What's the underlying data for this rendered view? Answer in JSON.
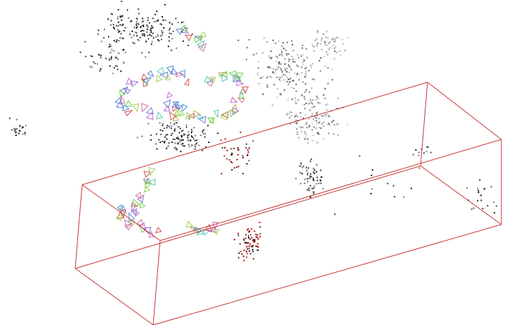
{
  "scene": {
    "background_color": "#ffffff",
    "bbox_color": "#c83232",
    "point_colors": [
      "#111111",
      "#333333",
      "#555555",
      "#777777",
      "#8f8f8f",
      "#a8a8a8",
      "#c2c2c2"
    ],
    "red_point_colors": [
      "#8b0000",
      "#b01010",
      "#d22020",
      "#7a1a1a"
    ],
    "camera_colors": [
      "#6ad14f",
      "#c26ad1",
      "#4f8fd1",
      "#d1a34f",
      "#8a6ad1",
      "#52c7b8",
      "#d16a9a",
      "#9ad14f",
      "#d14f4f",
      "#6a7fd1"
    ]
  }
}
